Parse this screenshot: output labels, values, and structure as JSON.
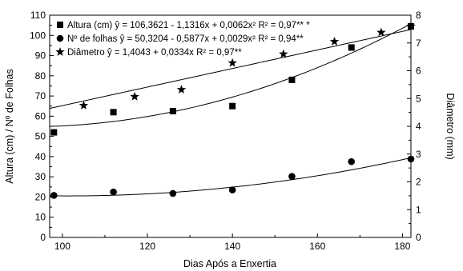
{
  "chart_data": {
    "type": "scatter",
    "xlabel": "Dias Após a Enxertia",
    "ylabel": "Altura (cm) / Nº de Folhas",
    "y2label": "Diâmetro (mm)",
    "xlim": [
      97,
      182
    ],
    "ylim": [
      0,
      110
    ],
    "y2lim": [
      0,
      8
    ],
    "xticks": [
      "100",
      "120",
      "140",
      "160",
      "180"
    ],
    "yticks": [
      "0",
      "10",
      "20",
      "30",
      "40",
      "50",
      "60",
      "70",
      "80",
      "90",
      "100",
      "110"
    ],
    "y2ticks": [
      "0",
      "1",
      "2",
      "3",
      "4",
      "5",
      "6",
      "7",
      "8"
    ],
    "legend_position": "top-left",
    "grid": false,
    "series": [
      {
        "name": "Altura (cm) ŷ = 106,3621 - 1,1316x + 0,0062x² R² = 0,97** *",
        "marker": "square",
        "axis": "left",
        "x": [
          98,
          112,
          126,
          140,
          154,
          168,
          182
        ],
        "y": [
          52,
          62,
          62.5,
          65,
          78,
          94,
          104.5
        ],
        "fit": {
          "kind": "quadratic",
          "coef": [
            106.3621,
            -1.1316,
            0.0062
          ]
        }
      },
      {
        "name": "Nº de folhas ŷ = 50,3204 - 0,5877x + 0,0029x² R² = 0,94**",
        "marker": "circle",
        "axis": "left",
        "x": [
          98,
          112,
          126,
          140,
          154,
          168,
          182
        ],
        "y": [
          20.8,
          22.5,
          21.8,
          23.5,
          30.2,
          37.5,
          38.8
        ],
        "fit": {
          "kind": "quadratic",
          "coef": [
            50.3204,
            -0.5877,
            0.0029
          ]
        }
      },
      {
        "name": "Diâmetro ŷ = 1,4043 + 0,0334x R² = 0,97**",
        "marker": "star",
        "axis": "right",
        "x": [
          105,
          117,
          128,
          140,
          152,
          164,
          175,
          182
        ],
        "y": [
          4.75,
          5.07,
          5.32,
          6.28,
          6.6,
          7.05,
          7.38,
          7.6
        ],
        "fit": {
          "kind": "linear",
          "coef": [
            1.4043,
            0.0334
          ]
        }
      }
    ]
  }
}
